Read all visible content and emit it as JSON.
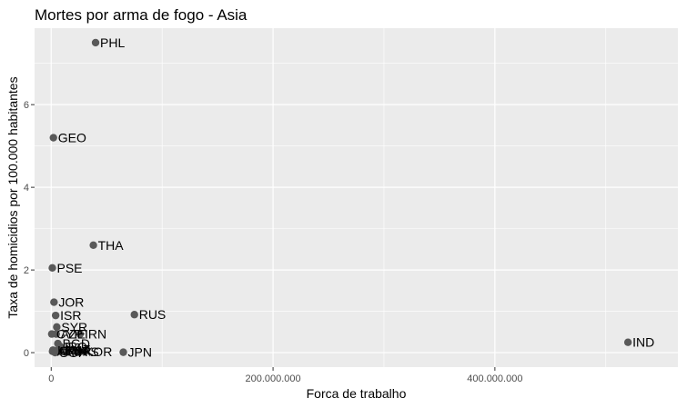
{
  "chart_data": {
    "type": "scatter",
    "title": "Mortes por arma de fogo - Asia",
    "xlabel": "Forca de trabalho",
    "ylabel": "Taxa de homicidios por 100.000 habitantes",
    "xlim": [
      -15000000,
      565000000
    ],
    "ylim": [
      -0.35,
      7.85
    ],
    "x_ticks": [
      {
        "value": 0,
        "label": "0"
      },
      {
        "value": 200000000,
        "label": "200.000.000"
      },
      {
        "value": 400000000,
        "label": "400.000.000"
      }
    ],
    "y_ticks": [
      {
        "value": 0,
        "label": "0"
      },
      {
        "value": 2,
        "label": "2"
      },
      {
        "value": 4,
        "label": "4"
      },
      {
        "value": 6,
        "label": "6"
      }
    ],
    "grid": true,
    "point_color": "#595959",
    "panel_color": "#ebebeb",
    "points": [
      {
        "label": "PHL",
        "x": 40000000,
        "y": 7.5
      },
      {
        "label": "GEO",
        "x": 2000000,
        "y": 5.2
      },
      {
        "label": "THA",
        "x": 38000000,
        "y": 2.6
      },
      {
        "label": "PSE",
        "x": 1000000,
        "y": 2.05
      },
      {
        "label": "JOR",
        "x": 2500000,
        "y": 1.22
      },
      {
        "label": "RUS",
        "x": 75000000,
        "y": 0.92
      },
      {
        "label": "ISR",
        "x": 4000000,
        "y": 0.9
      },
      {
        "label": "SYR",
        "x": 5000000,
        "y": 0.62
      },
      {
        "label": "AZE",
        "x": 4500000,
        "y": 0.45
      },
      {
        "label": "IRN",
        "x": 26000000,
        "y": 0.45
      },
      {
        "label": "CYP",
        "x": 500000,
        "y": 0.45
      },
      {
        "label": "IND",
        "x": 520000000,
        "y": 0.25
      },
      {
        "label": "BGD",
        "x": 6000000,
        "y": 0.22
      },
      {
        "label": "IRQ",
        "x": 8000000,
        "y": 0.15
      },
      {
        "label": "KAZ",
        "x": 9000000,
        "y": 0.08
      },
      {
        "label": "CHN",
        "x": 3000000,
        "y": 0.05
      },
      {
        "label": "KOR",
        "x": 26000000,
        "y": 0.02
      },
      {
        "label": "JPN",
        "x": 65000000,
        "y": 0.01
      },
      {
        "label": "MYS",
        "x": 14000000,
        "y": 0.02
      },
      {
        "label": "TUR",
        "x": 8500000,
        "y": 0.04
      },
      {
        "label": "ARM",
        "x": 1200000,
        "y": 0.03
      },
      {
        "label": "LBN",
        "x": 1500000,
        "y": 0.06
      },
      {
        "label": "SGP",
        "x": 3500000,
        "y": 0.0
      }
    ]
  }
}
